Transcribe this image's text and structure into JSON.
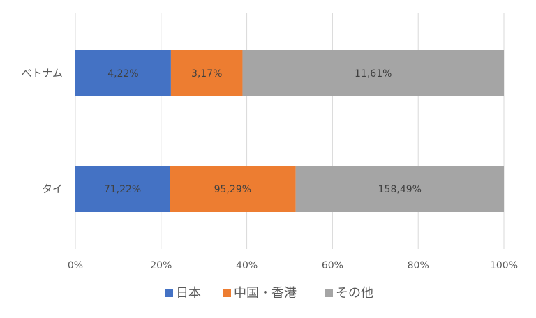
{
  "chart_data": {
    "type": "bar",
    "orientation": "horizontal",
    "stacked": "percent",
    "categories": [
      "ベトナム",
      "タイ"
    ],
    "series": [
      {
        "name": "日本",
        "color": "#4472C4",
        "values": [
          22.3,
          22.0
        ],
        "data_labels": [
          "4,22%",
          "71,22%"
        ]
      },
      {
        "name": "中国・香港",
        "color": "#ED7D31",
        "values": [
          16.7,
          29.4
        ],
        "data_labels": [
          "3,17%",
          "95,29%"
        ]
      },
      {
        "name": "その他",
        "color": "#A5A5A5",
        "values": [
          61.0,
          48.6
        ],
        "data_labels": [
          "11,61%",
          "158,49%"
        ]
      }
    ],
    "xlim": [
      0,
      100
    ],
    "xticks": [
      "0%",
      "20%",
      "40%",
      "60%",
      "80%",
      "100%"
    ],
    "grid": true,
    "legend": "bottom"
  }
}
